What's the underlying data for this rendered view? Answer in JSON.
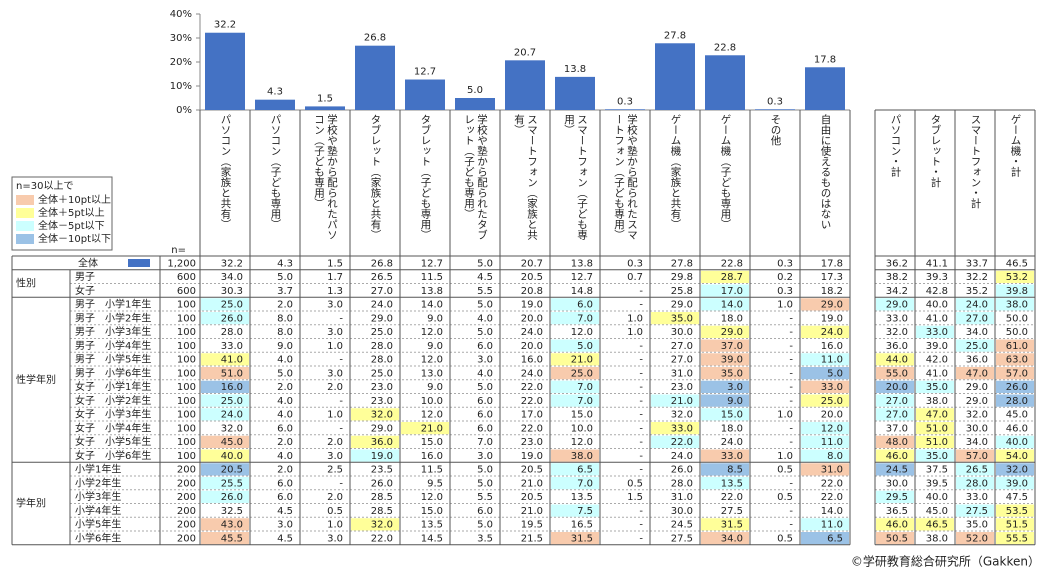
{
  "chart_data": {
    "type": "bar",
    "categories": [
      "パソコン（家族と共有）",
      "パソコン（子ども専用）",
      "学校や塾から配られたパソコン（子ども専用）",
      "タブレット（家族と共有）",
      "タブレット（子ども専用）",
      "学校や塾から配られたタブレット（子ども専用）",
      "スマートフォン（家族と共有）",
      "スマートフォン（子ども専用）",
      "学校や塾から配られたスマートフォン（子ども専用）",
      "ゲーム機（家族と共有）",
      "ゲーム機（子ども専用）",
      "その他",
      "自由に使えるものはない"
    ],
    "values": [
      32.2,
      4.3,
      1.5,
      26.8,
      12.7,
      5.0,
      20.7,
      13.8,
      0.3,
      27.8,
      22.8,
      0.3,
      17.8
    ],
    "value_labels": [
      "32.2",
      "4.3",
      "1.5",
      "26.8",
      "12.7",
      "5.0",
      "20.7",
      "13.8",
      "0.3",
      "27.8",
      "22.8",
      "0.3",
      "17.8"
    ],
    "color": "#4472c4",
    "ylim": [
      0,
      40
    ],
    "yticks": [
      {
        "value": 0,
        "label": "0%"
      },
      {
        "value": 10,
        "label": "10%"
      },
      {
        "value": 20,
        "label": "20%"
      },
      {
        "value": 30,
        "label": "30%"
      },
      {
        "value": 40,
        "label": "40%"
      }
    ]
  },
  "total_headers": [
    "パソコン・計",
    "タブレット・計",
    "スマートフォン・計",
    "ゲーム機・計"
  ],
  "n_label": "n=",
  "legend": {
    "title": "n=30以上で",
    "items": [
      {
        "label": "全体＋10pt以上",
        "color": "#f8cbad"
      },
      {
        "label": "全体＋5pt以上",
        "color": "#ffff99"
      },
      {
        "label": "全体－5pt以下",
        "color": "#ccffff"
      },
      {
        "label": "全体－10pt以下",
        "color": "#9bc2e6"
      }
    ]
  },
  "table": {
    "overall": {
      "label": "全体",
      "n": "1,200",
      "cells": [
        "32.2",
        "4.3",
        "1.5",
        "26.8",
        "12.7",
        "5.0",
        "20.7",
        "13.8",
        "0.3",
        "27.8",
        "22.8",
        "0.3",
        "17.8",
        "36.2",
        "41.1",
        "33.7",
        "46.5"
      ]
    },
    "groups": [
      {
        "label": "性別",
        "rows": [
          {
            "label": "男子",
            "n": "600",
            "cells": [
              "34.0",
              "5.0",
              "1.7",
              "26.5",
              "11.5",
              "4.5",
              "20.5",
              "12.7",
              "0.7",
              "29.8",
              "28.7",
              "0.2",
              "17.3",
              "38.2",
              "39.3",
              "32.2",
              "53.2"
            ],
            "fills": {
              "10": 1,
              "16": 1
            }
          },
          {
            "label": "女子",
            "n": "600",
            "cells": [
              "30.3",
              "3.7",
              "1.3",
              "27.0",
              "13.8",
              "5.5",
              "20.8",
              "14.8",
              "-",
              "25.8",
              "17.0",
              "0.3",
              "18.2",
              "34.2",
              "42.8",
              "35.2",
              "39.8"
            ],
            "fills": {
              "10": 2,
              "16": 2
            }
          }
        ]
      },
      {
        "label": "性学年別",
        "rows": [
          {
            "label": "男子　小学1年生",
            "n": "100",
            "cells": [
              "25.0",
              "2.0",
              "3.0",
              "24.0",
              "14.0",
              "5.0",
              "19.0",
              "6.0",
              "-",
              "29.0",
              "14.0",
              "1.0",
              "29.0",
              "29.0",
              "40.0",
              "24.0",
              "38.0"
            ],
            "fills": {
              "0": 2,
              "7": 2,
              "10": 2,
              "12": 0,
              "13": 2,
              "15": 2,
              "16": 2
            }
          },
          {
            "label": "男子　小学2年生",
            "n": "100",
            "cells": [
              "26.0",
              "8.0",
              "-",
              "29.0",
              "9.0",
              "4.0",
              "20.0",
              "7.0",
              "1.0",
              "35.0",
              "18.0",
              "-",
              "19.0",
              "33.0",
              "41.0",
              "27.0",
              "50.0"
            ],
            "fills": {
              "0": 2,
              "7": 2,
              "9": 1,
              "15": 2
            }
          },
          {
            "label": "男子　小学3年生",
            "n": "100",
            "cells": [
              "28.0",
              "8.0",
              "3.0",
              "25.0",
              "12.0",
              "5.0",
              "24.0",
              "12.0",
              "1.0",
              "30.0",
              "29.0",
              "-",
              "24.0",
              "32.0",
              "33.0",
              "34.0",
              "50.0"
            ],
            "fills": {
              "10": 1,
              "12": 1,
              "14": 2
            }
          },
          {
            "label": "男子　小学4年生",
            "n": "100",
            "cells": [
              "33.0",
              "9.0",
              "1.0",
              "28.0",
              "9.0",
              "6.0",
              "20.0",
              "5.0",
              "-",
              "27.0",
              "37.0",
              "-",
              "16.0",
              "36.0",
              "39.0",
              "25.0",
              "61.0"
            ],
            "fills": {
              "7": 2,
              "10": 0,
              "15": 2,
              "16": 0
            }
          },
          {
            "label": "男子　小学5年生",
            "n": "100",
            "cells": [
              "41.0",
              "4.0",
              "-",
              "28.0",
              "12.0",
              "3.0",
              "16.0",
              "21.0",
              "-",
              "27.0",
              "39.0",
              "-",
              "11.0",
              "44.0",
              "42.0",
              "36.0",
              "63.0"
            ],
            "fills": {
              "0": 1,
              "7": 1,
              "10": 0,
              "12": 2,
              "13": 1,
              "16": 0
            }
          },
          {
            "label": "男子　小学6年生",
            "n": "100",
            "cells": [
              "51.0",
              "5.0",
              "3.0",
              "25.0",
              "13.0",
              "4.0",
              "24.0",
              "25.0",
              "-",
              "31.0",
              "35.0",
              "-",
              "5.0",
              "55.0",
              "41.0",
              "47.0",
              "57.0"
            ],
            "fills": {
              "0": 0,
              "7": 0,
              "10": 0,
              "12": 3,
              "13": 0,
              "15": 0,
              "16": 0
            }
          },
          {
            "label": "女子　小学1年生",
            "n": "100",
            "cells": [
              "16.0",
              "2.0",
              "2.0",
              "23.0",
              "9.0",
              "5.0",
              "22.0",
              "7.0",
              "-",
              "23.0",
              "3.0",
              "-",
              "33.0",
              "20.0",
              "35.0",
              "29.0",
              "26.0"
            ],
            "fills": {
              "0": 3,
              "7": 2,
              "10": 3,
              "12": 0,
              "13": 3,
              "14": 2,
              "16": 3
            }
          },
          {
            "label": "女子　小学2年生",
            "n": "100",
            "cells": [
              "25.0",
              "4.0",
              "-",
              "23.0",
              "10.0",
              "6.0",
              "22.0",
              "7.0",
              "-",
              "21.0",
              "9.0",
              "-",
              "25.0",
              "27.0",
              "38.0",
              "29.0",
              "28.0"
            ],
            "fills": {
              "0": 2,
              "7": 2,
              "9": 2,
              "10": 3,
              "12": 1,
              "13": 2,
              "16": 3
            }
          },
          {
            "label": "女子　小学3年生",
            "n": "100",
            "cells": [
              "24.0",
              "4.0",
              "1.0",
              "32.0",
              "12.0",
              "6.0",
              "17.0",
              "15.0",
              "-",
              "32.0",
              "15.0",
              "1.0",
              "20.0",
              "27.0",
              "47.0",
              "32.0",
              "45.0"
            ],
            "fills": {
              "0": 2,
              "3": 1,
              "10": 2,
              "13": 2,
              "14": 1
            }
          },
          {
            "label": "女子　小学4年生",
            "n": "100",
            "cells": [
              "32.0",
              "6.0",
              "-",
              "29.0",
              "21.0",
              "6.0",
              "22.0",
              "10.0",
              "-",
              "33.0",
              "18.0",
              "-",
              "12.0",
              "37.0",
              "51.0",
              "30.0",
              "46.0"
            ],
            "fills": {
              "4": 1,
              "9": 1,
              "12": 2,
              "14": 1
            }
          },
          {
            "label": "女子　小学5年生",
            "n": "100",
            "cells": [
              "45.0",
              "2.0",
              "2.0",
              "36.0",
              "15.0",
              "7.0",
              "23.0",
              "12.0",
              "-",
              "22.0",
              "24.0",
              "-",
              "11.0",
              "48.0",
              "51.0",
              "34.0",
              "40.0"
            ],
            "fills": {
              "0": 0,
              "3": 1,
              "9": 2,
              "12": 2,
              "13": 0,
              "14": 1,
              "16": 2
            }
          },
          {
            "label": "女子　小学6年生",
            "n": "100",
            "cells": [
              "40.0",
              "4.0",
              "3.0",
              "19.0",
              "16.0",
              "3.0",
              "19.0",
              "38.0",
              "-",
              "24.0",
              "33.0",
              "1.0",
              "8.0",
              "46.0",
              "35.0",
              "57.0",
              "54.0"
            ],
            "fills": {
              "0": 1,
              "3": 2,
              "7": 0,
              "10": 0,
              "12": 2,
              "13": 1,
              "14": 2,
              "15": 0,
              "16": 1
            }
          }
        ]
      },
      {
        "label": "学年別",
        "rows": [
          {
            "label": "小学1年生",
            "n": "200",
            "cells": [
              "20.5",
              "2.0",
              "2.5",
              "23.5",
              "11.5",
              "5.0",
              "20.5",
              "6.5",
              "-",
              "26.0",
              "8.5",
              "0.5",
              "31.0",
              "24.5",
              "37.5",
              "26.5",
              "32.0"
            ],
            "fills": {
              "0": 3,
              "7": 2,
              "10": 3,
              "12": 0,
              "13": 3,
              "15": 2,
              "16": 3
            }
          },
          {
            "label": "小学2年生",
            "n": "200",
            "cells": [
              "25.5",
              "6.0",
              "-",
              "26.0",
              "9.5",
              "5.0",
              "21.0",
              "7.0",
              "0.5",
              "28.0",
              "13.5",
              "-",
              "22.0",
              "30.0",
              "39.5",
              "28.0",
              "39.0"
            ],
            "fills": {
              "0": 2,
              "7": 2,
              "10": 2,
              "15": 2,
              "16": 2
            }
          },
          {
            "label": "小学3年生",
            "n": "200",
            "cells": [
              "26.0",
              "6.0",
              "2.0",
              "28.5",
              "12.0",
              "5.5",
              "20.5",
              "13.5",
              "1.5",
              "31.0",
              "22.0",
              "0.5",
              "22.0",
              "29.5",
              "40.0",
              "33.0",
              "47.5"
            ],
            "fills": {
              "0": 2,
              "13": 2
            }
          },
          {
            "label": "小学4年生",
            "n": "200",
            "cells": [
              "32.5",
              "4.5",
              "0.5",
              "28.5",
              "15.0",
              "6.0",
              "21.0",
              "7.5",
              "-",
              "30.0",
              "27.5",
              "-",
              "14.0",
              "36.5",
              "45.0",
              "27.5",
              "53.5"
            ],
            "fills": {
              "7": 2,
              "15": 2,
              "16": 1
            }
          },
          {
            "label": "小学5年生",
            "n": "200",
            "cells": [
              "43.0",
              "3.0",
              "1.0",
              "32.0",
              "13.5",
              "5.0",
              "19.5",
              "16.5",
              "-",
              "24.5",
              "31.5",
              "-",
              "11.0",
              "46.0",
              "46.5",
              "35.0",
              "51.5"
            ],
            "fills": {
              "0": 0,
              "3": 1,
              "10": 1,
              "12": 2,
              "13": 1,
              "14": 1,
              "16": 1
            }
          },
          {
            "label": "小学6年生",
            "n": "200",
            "cells": [
              "45.5",
              "4.5",
              "3.0",
              "22.0",
              "14.5",
              "3.5",
              "21.5",
              "31.5",
              "-",
              "27.5",
              "34.0",
              "0.5",
              "6.5",
              "50.5",
              "38.0",
              "52.0",
              "55.5"
            ],
            "fills": {
              "0": 0,
              "7": 0,
              "10": 0,
              "12": 3,
              "13": 0,
              "15": 0,
              "16": 1
            }
          }
        ]
      }
    ]
  },
  "footer": "©学研教育総合研究所（Gakken）"
}
